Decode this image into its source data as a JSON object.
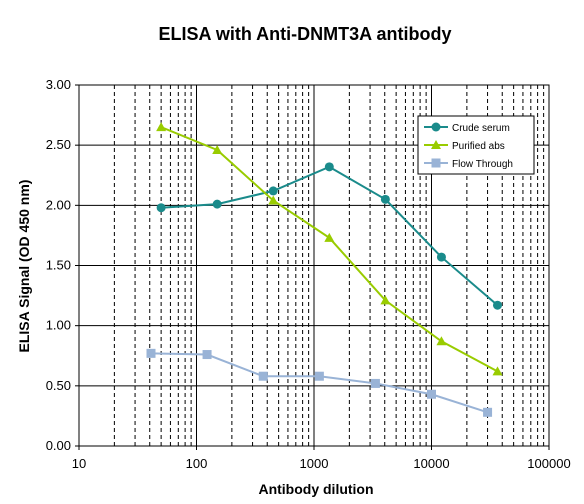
{
  "chart_data": {
    "type": "line",
    "title": "ELISA  with Anti-DNMT3A antibody",
    "xlabel": "Antibody dilution",
    "ylabel": "ELISA Signal (OD 450 nm)",
    "x_scale": "log",
    "xlim": [
      10,
      100000
    ],
    "ylim": [
      0,
      3
    ],
    "x_ticks": [
      "10",
      "100",
      "1000",
      "10000",
      "100000"
    ],
    "y_ticks": [
      "0.00",
      "0.50",
      "1.00",
      "1.50",
      "2.00",
      "2.50",
      "3.00"
    ],
    "grid": true,
    "legend_position": "top-right",
    "series": [
      {
        "name": "Crude serum",
        "color": "#1a8b8b",
        "marker": "circle",
        "x": [
          50,
          150,
          450,
          1350,
          4050,
          12150,
          36450
        ],
        "y": [
          1.98,
          2.01,
          2.12,
          2.32,
          2.05,
          1.57,
          1.17
        ]
      },
      {
        "name": "Purified abs",
        "color": "#99cc00",
        "marker": "triangle",
        "x": [
          50,
          150,
          450,
          1350,
          4050,
          12150,
          36450
        ],
        "y": [
          2.65,
          2.46,
          2.04,
          1.73,
          1.21,
          0.87,
          0.62
        ]
      },
      {
        "name": "Flow Through",
        "color": "#99b3d6",
        "marker": "square",
        "x": [
          41,
          123,
          370,
          1111,
          3333,
          10000,
          30000
        ],
        "y": [
          0.77,
          0.76,
          0.58,
          0.58,
          0.52,
          0.43,
          0.28
        ]
      }
    ]
  }
}
